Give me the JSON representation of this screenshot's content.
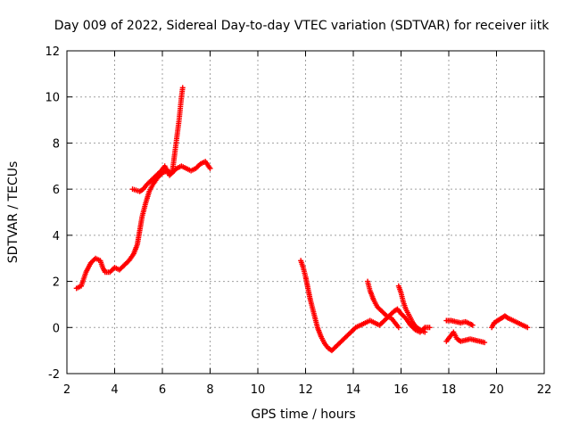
{
  "chart_data": {
    "type": "scatter",
    "title": "Day 009 of 2022, Sidereal Day-to-day VTEC variation (SDTVAR) for receiver iitk",
    "xlabel": "GPS time / hours",
    "ylabel": "SDTVAR / TECUs",
    "xlim": [
      2,
      22
    ],
    "ylim": [
      -2,
      12
    ],
    "xticks": [
      2,
      4,
      6,
      8,
      10,
      12,
      14,
      16,
      18,
      20,
      22
    ],
    "yticks": [
      -2,
      0,
      2,
      4,
      6,
      8,
      10,
      12
    ],
    "grid": true,
    "marker": "+",
    "color": "#ff0000",
    "series": [
      {
        "name": "segment-1",
        "points": [
          [
            2.4,
            1.7
          ],
          [
            2.6,
            1.8
          ],
          [
            2.8,
            2.4
          ],
          [
            3.0,
            2.8
          ],
          [
            3.2,
            3.0
          ],
          [
            3.4,
            2.9
          ],
          [
            3.5,
            2.6
          ],
          [
            3.6,
            2.4
          ],
          [
            3.8,
            2.4
          ],
          [
            4.0,
            2.6
          ],
          [
            4.2,
            2.5
          ],
          [
            4.4,
            2.7
          ],
          [
            4.6,
            2.9
          ],
          [
            4.8,
            3.2
          ],
          [
            4.95,
            3.6
          ],
          [
            5.05,
            4.2
          ],
          [
            5.15,
            4.8
          ],
          [
            5.3,
            5.4
          ],
          [
            5.45,
            5.9
          ],
          [
            5.6,
            6.2
          ],
          [
            5.8,
            6.5
          ],
          [
            6.0,
            6.7
          ],
          [
            6.2,
            6.8
          ],
          [
            6.4,
            6.7
          ],
          [
            6.6,
            6.9
          ],
          [
            6.8,
            7.0
          ],
          [
            7.0,
            6.9
          ],
          [
            7.2,
            6.8
          ],
          [
            7.4,
            6.9
          ],
          [
            7.6,
            7.1
          ],
          [
            7.8,
            7.2
          ],
          [
            8.0,
            6.9
          ]
        ]
      },
      {
        "name": "segment-2",
        "points": [
          [
            4.75,
            6.0
          ],
          [
            4.9,
            5.95
          ],
          [
            5.05,
            5.9
          ],
          [
            5.2,
            6.0
          ],
          [
            5.35,
            6.2
          ],
          [
            5.55,
            6.4
          ],
          [
            5.75,
            6.6
          ],
          [
            5.95,
            6.8
          ],
          [
            6.1,
            7.0
          ],
          [
            6.2,
            6.8
          ],
          [
            6.3,
            6.6
          ],
          [
            6.4,
            6.7
          ],
          [
            6.45,
            7.0
          ],
          [
            6.5,
            7.4
          ],
          [
            6.55,
            7.8
          ],
          [
            6.6,
            8.2
          ],
          [
            6.65,
            8.6
          ],
          [
            6.7,
            9.0
          ],
          [
            6.75,
            9.5
          ],
          [
            6.8,
            10.0
          ],
          [
            6.85,
            10.4
          ]
        ]
      },
      {
        "name": "segment-3",
        "points": [
          [
            11.8,
            2.9
          ],
          [
            11.9,
            2.6
          ],
          [
            12.0,
            2.2
          ],
          [
            12.1,
            1.7
          ],
          [
            12.2,
            1.2
          ],
          [
            12.35,
            0.6
          ],
          [
            12.5,
            0.0
          ],
          [
            12.65,
            -0.4
          ],
          [
            12.8,
            -0.7
          ],
          [
            12.95,
            -0.9
          ],
          [
            13.1,
            -1.0
          ],
          [
            13.3,
            -0.8
          ],
          [
            13.5,
            -0.6
          ],
          [
            13.7,
            -0.4
          ],
          [
            13.9,
            -0.2
          ],
          [
            14.1,
            0.0
          ],
          [
            14.3,
            0.1
          ],
          [
            14.5,
            0.2
          ],
          [
            14.7,
            0.3
          ],
          [
            14.9,
            0.2
          ],
          [
            15.1,
            0.1
          ],
          [
            15.3,
            0.3
          ],
          [
            15.5,
            0.5
          ],
          [
            15.7,
            0.7
          ],
          [
            15.85,
            0.8
          ],
          [
            16.0,
            0.6
          ],
          [
            16.2,
            0.4
          ],
          [
            16.4,
            0.1
          ],
          [
            16.6,
            -0.1
          ],
          [
            16.8,
            -0.2
          ],
          [
            17.0,
            0.0
          ],
          [
            17.2,
            0.0
          ]
        ]
      },
      {
        "name": "segment-4",
        "points": [
          [
            14.6,
            2.0
          ],
          [
            14.7,
            1.6
          ],
          [
            14.85,
            1.2
          ],
          [
            15.0,
            0.9
          ],
          [
            15.2,
            0.7
          ],
          [
            15.4,
            0.5
          ],
          [
            15.6,
            0.4
          ],
          [
            15.75,
            0.2
          ],
          [
            15.9,
            0.0
          ]
        ]
      },
      {
        "name": "segment-5",
        "points": [
          [
            15.9,
            1.8
          ],
          [
            16.0,
            1.5
          ],
          [
            16.1,
            1.1
          ],
          [
            16.2,
            0.8
          ],
          [
            16.35,
            0.5
          ],
          [
            16.5,
            0.2
          ],
          [
            16.65,
            0.0
          ],
          [
            16.8,
            -0.1
          ],
          [
            17.0,
            -0.2
          ]
        ]
      },
      {
        "name": "segment-6",
        "points": [
          [
            17.9,
            0.3
          ],
          [
            18.1,
            0.3
          ],
          [
            18.3,
            0.25
          ],
          [
            18.5,
            0.2
          ],
          [
            18.7,
            0.25
          ],
          [
            18.9,
            0.15
          ],
          [
            19.0,
            0.1
          ]
        ]
      },
      {
        "name": "segment-7",
        "points": [
          [
            17.9,
            -0.6
          ],
          [
            18.05,
            -0.4
          ],
          [
            18.2,
            -0.2
          ],
          [
            18.35,
            -0.5
          ],
          [
            18.5,
            -0.6
          ],
          [
            18.7,
            -0.55
          ],
          [
            18.9,
            -0.5
          ],
          [
            19.1,
            -0.55
          ],
          [
            19.3,
            -0.6
          ],
          [
            19.5,
            -0.65
          ]
        ]
      },
      {
        "name": "segment-8",
        "points": [
          [
            19.8,
            0.0
          ],
          [
            19.9,
            0.2
          ],
          [
            20.05,
            0.3
          ],
          [
            20.2,
            0.4
          ],
          [
            20.35,
            0.5
          ],
          [
            20.5,
            0.4
          ],
          [
            20.7,
            0.3
          ],
          [
            20.9,
            0.2
          ],
          [
            21.1,
            0.1
          ],
          [
            21.3,
            0.0
          ]
        ]
      }
    ]
  }
}
